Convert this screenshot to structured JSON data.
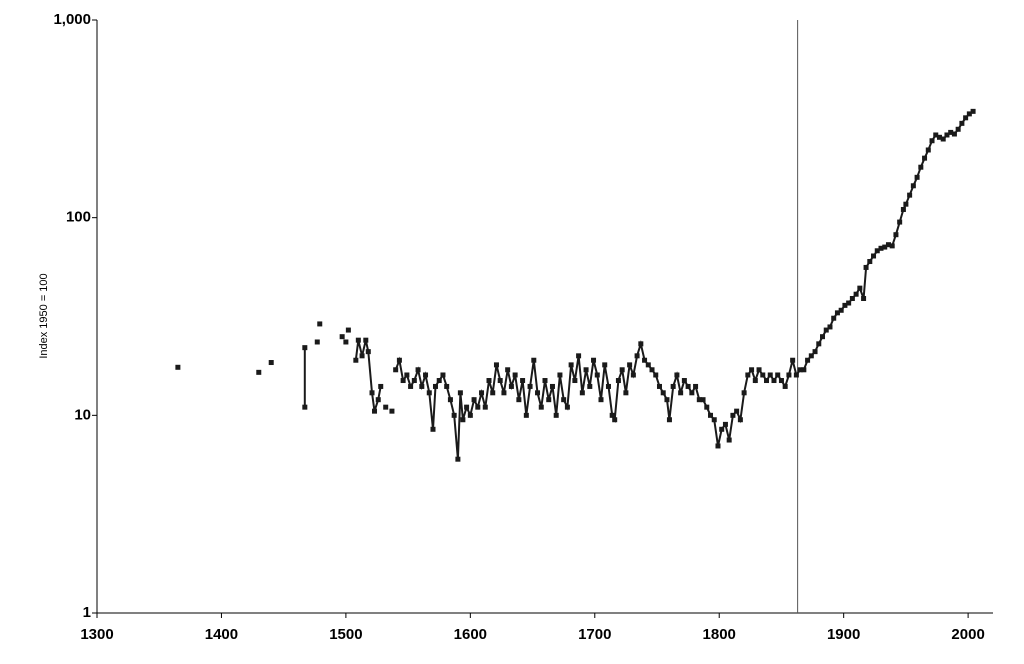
{
  "chart_data": {
    "type": "line",
    "y_label": "Index 1950 = 100",
    "log_y": true,
    "grid": false,
    "color": "#1a1a1a",
    "marker": "square",
    "reference_line_x": 1863,
    "xlim": [
      1300,
      2020
    ],
    "xticks": [
      1300,
      1400,
      1500,
      1600,
      1700,
      1800,
      1900,
      2000
    ],
    "ylim": [
      1,
      1000
    ],
    "yticks": [
      1,
      10,
      100,
      {
        "value": 1000,
        "label": "1,000"
      }
    ],
    "x": [
      1365,
      1400,
      1430,
      1435,
      1440,
      1450,
      1467,
      1467,
      1472,
      1477,
      1478,
      1479,
      1488,
      1497,
      1498,
      1500,
      1501,
      1502,
      1505,
      1508,
      1510,
      1513,
      1516,
      1518,
      1521,
      1523,
      1526,
      1528,
      1530,
      1532,
      1534,
      1537,
      1538,
      1540,
      1543,
      1546,
      1549,
      1552,
      1555,
      1558,
      1561,
      1564,
      1567,
      1570,
      1572,
      1575,
      1578,
      1581,
      1584,
      1587,
      1590,
      1592,
      1594,
      1597,
      1600,
      1603,
      1606,
      1609,
      1612,
      1615,
      1618,
      1621,
      1624,
      1627,
      1630,
      1633,
      1636,
      1639,
      1642,
      1645,
      1648,
      1651,
      1654,
      1657,
      1660,
      1663,
      1666,
      1669,
      1672,
      1675,
      1678,
      1681,
      1684,
      1687,
      1690,
      1693,
      1696,
      1699,
      1702,
      1705,
      1708,
      1711,
      1714,
      1716,
      1719,
      1722,
      1725,
      1728,
      1731,
      1734,
      1737,
      1740,
      1743,
      1746,
      1749,
      1752,
      1755,
      1758,
      1760,
      1763,
      1766,
      1769,
      1772,
      1775,
      1778,
      1781,
      1784,
      1787,
      1790,
      1793,
      1796,
      1799,
      1802,
      1805,
      1808,
      1811,
      1814,
      1817,
      1820,
      1823,
      1826,
      1829,
      1832,
      1835,
      1838,
      1841,
      1844,
      1847,
      1850,
      1853,
      1856,
      1859,
      1862,
      1865,
      1868,
      1871,
      1874,
      1877,
      1880,
      1883,
      1886,
      1889,
      1892,
      1895,
      1898,
      1901,
      1904,
      1907,
      1910,
      1913,
      1916,
      1918,
      1921,
      1924,
      1927,
      1930,
      1933,
      1936,
      1939,
      1942,
      1945,
      1948,
      1950,
      1953,
      1956,
      1959,
      1962,
      1965,
      1968,
      1971,
      1974,
      1977,
      1980,
      1983,
      1986,
      1989,
      1992,
      1995,
      1998,
      2001,
      2004
    ],
    "values": [
      17.5,
      null,
      16.5,
      null,
      18.5,
      null,
      11,
      22,
      null,
      23.5,
      null,
      29,
      null,
      25,
      null,
      23.5,
      null,
      27,
      null,
      19,
      24,
      20,
      24,
      21,
      13,
      10.5,
      12,
      14,
      null,
      11,
      null,
      10.5,
      null,
      17,
      19,
      15,
      16,
      14,
      15,
      17,
      14,
      16,
      13,
      8.5,
      14,
      15,
      16,
      14,
      12,
      10,
      6,
      13,
      9.5,
      11,
      10,
      12,
      11,
      13,
      11,
      15,
      13,
      18,
      15,
      13,
      17,
      14,
      16,
      12,
      15,
      10,
      14,
      19,
      13,
      11,
      15,
      12,
      14,
      10,
      16,
      12,
      11,
      18,
      15,
      20,
      13,
      17,
      14,
      19,
      16,
      12,
      18,
      14,
      10,
      9.5,
      15,
      17,
      13,
      18,
      16,
      20,
      23,
      19,
      18,
      17,
      16,
      14,
      13,
      12,
      9.5,
      14,
      16,
      13,
      15,
      14,
      13,
      14,
      12,
      12,
      11,
      10,
      9.5,
      7,
      8.5,
      9,
      7.5,
      10,
      10.5,
      9.5,
      13,
      16,
      17,
      15,
      17,
      16,
      15,
      16,
      15,
      16,
      15,
      14,
      16,
      19,
      16,
      17,
      17,
      19,
      20,
      21,
      23,
      25,
      27,
      28,
      31,
      33,
      34,
      36,
      37,
      39,
      41,
      44,
      39,
      56,
      60,
      64,
      68,
      70,
      71,
      73,
      72,
      82,
      95,
      110,
      117,
      130,
      145,
      160,
      180,
      200,
      220,
      245,
      262,
      255,
      250,
      262,
      270,
      265,
      280,
      300,
      320,
      335,
      345
    ]
  }
}
